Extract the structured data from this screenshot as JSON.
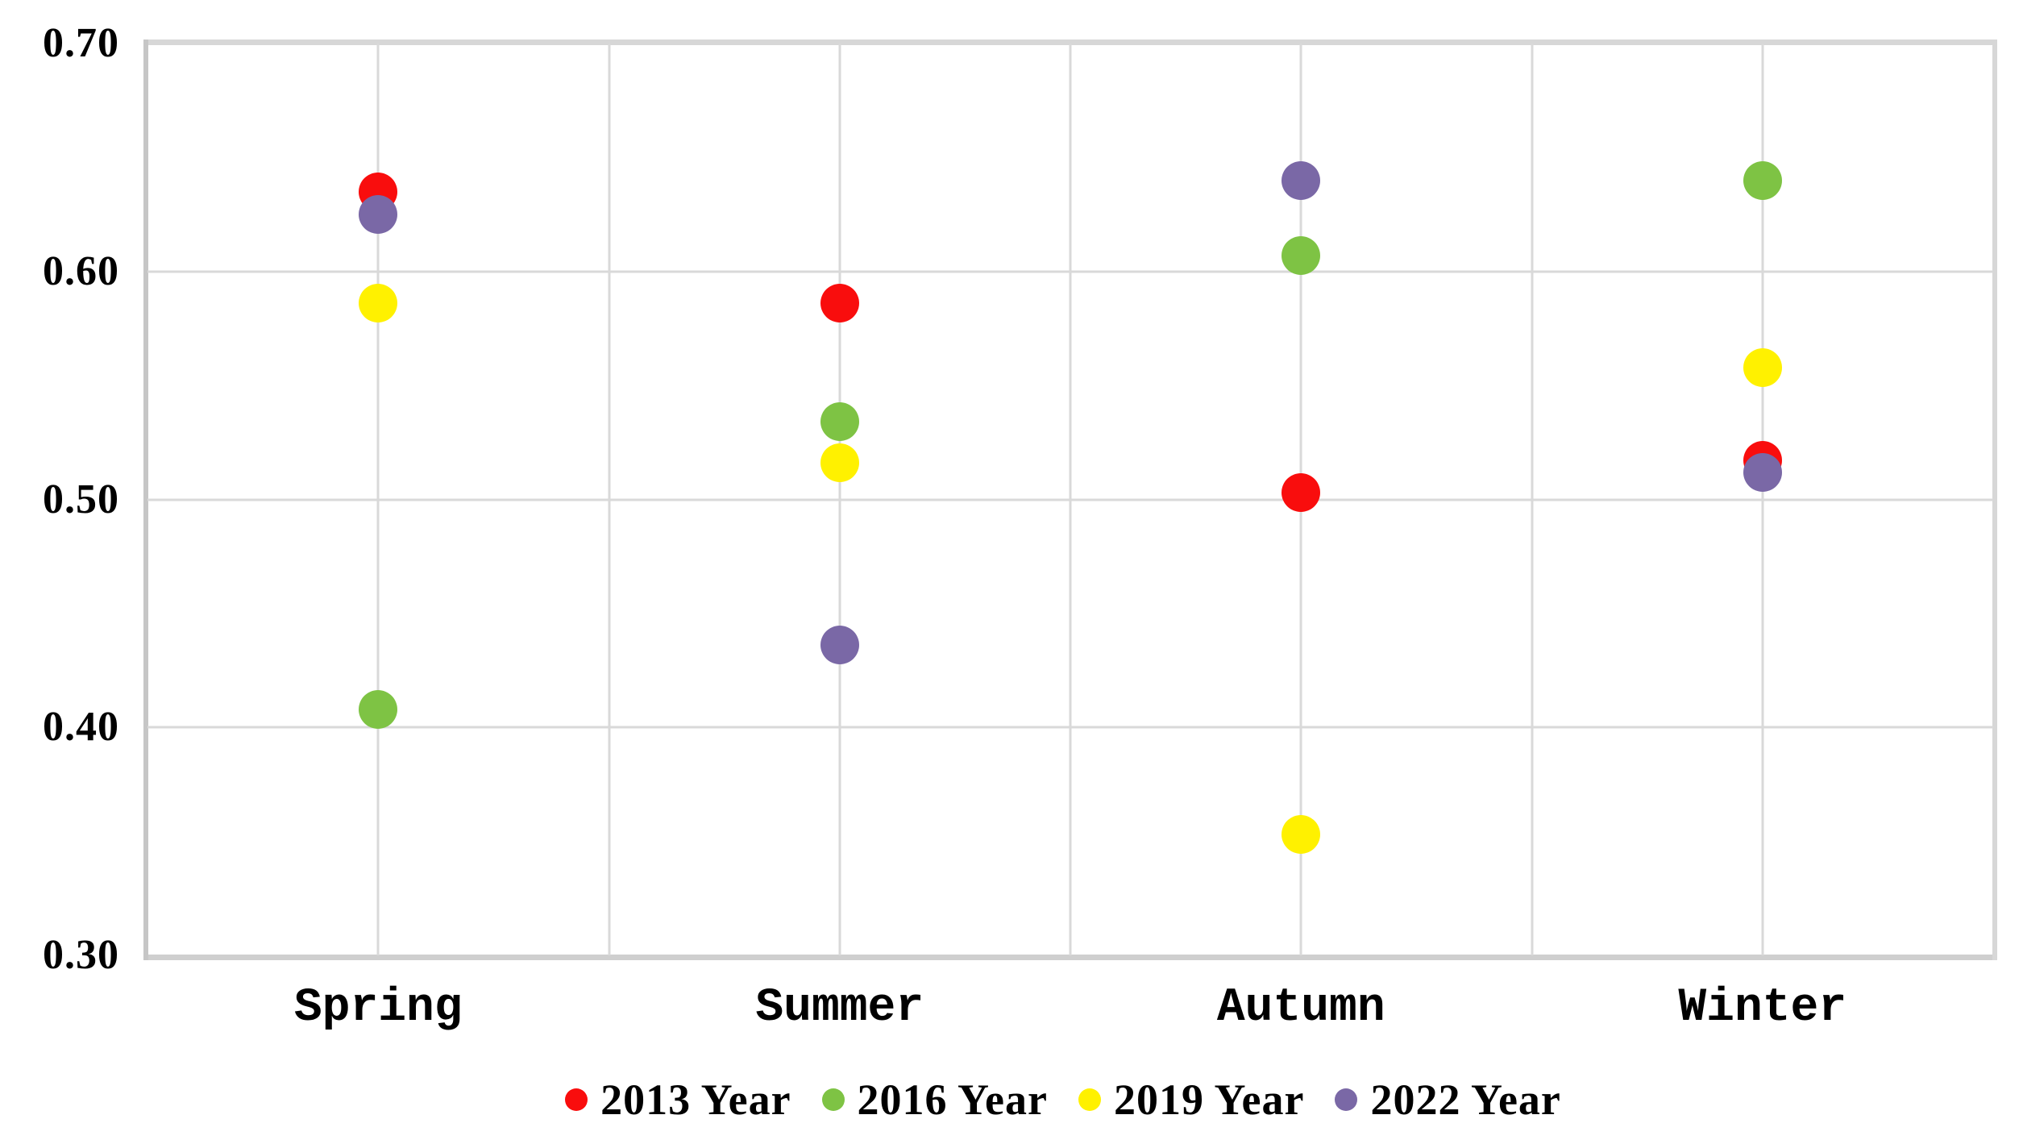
{
  "chart_data": {
    "type": "scatter",
    "title": "",
    "xlabel": "",
    "ylabel": "",
    "categories": [
      "Spring",
      "Summer",
      "Autumn",
      "Winter"
    ],
    "series": [
      {
        "name": "2013 Year",
        "color": "#f90d0d",
        "values": [
          0.635,
          0.586,
          0.503,
          0.517
        ]
      },
      {
        "name": "2016 Year",
        "color": "#7ec344",
        "values": [
          0.408,
          0.534,
          0.607,
          0.64
        ]
      },
      {
        "name": "2019 Year",
        "color": "#fff100",
        "values": [
          0.586,
          0.516,
          0.353,
          0.558
        ]
      },
      {
        "name": "2022 Year",
        "color": "#7a68a6",
        "values": [
          0.625,
          0.436,
          0.64,
          0.512
        ]
      }
    ],
    "ylim": [
      0.3,
      0.7
    ],
    "ytick_step": 0.1,
    "ytick_labels": [
      "0.70",
      "0.60",
      "0.50",
      "0.40",
      "0.30"
    ],
    "grid": true,
    "legend_position": "bottom"
  },
  "colors": {
    "background": "#ffffff",
    "gridline": "#d9d9d9",
    "axis_frame": "#cccccc",
    "text": "#000000",
    "series_2013": "#f90d0d",
    "series_2016": "#7ec344",
    "series_2019": "#fff100",
    "series_2022": "#7a68a6"
  }
}
